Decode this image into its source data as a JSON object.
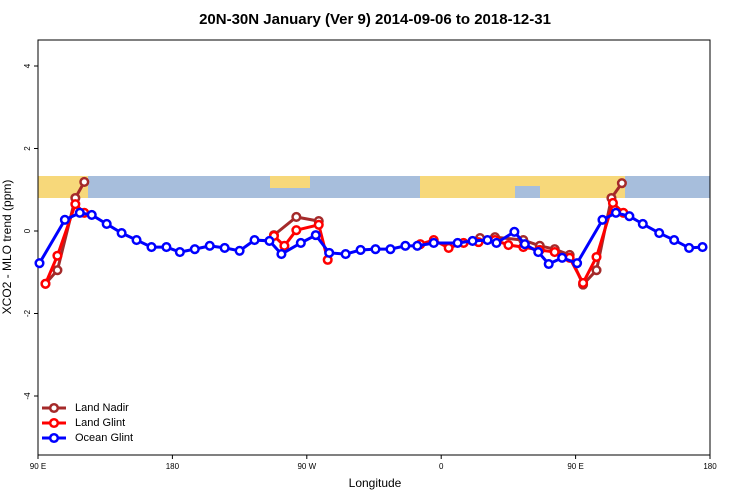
{
  "chart_data": {
    "type": "line",
    "title": "20N-30N January (Ver 9)   2014-09-06 to 2018-12-31",
    "x_label": "Longitude",
    "y_label": "XCO2 - MLO trend (ppm)",
    "xlim": [
      90,
      540
    ],
    "ylim": [
      -5.43,
      4.63
    ],
    "xticks": [
      {
        "value": 90,
        "label": "90 E"
      },
      180,
      {
        "value": 270,
        "label": "90 W"
      },
      {
        "value": 360,
        "label": "0"
      },
      {
        "value": 450,
        "label": "90 E"
      },
      {
        "value": 540,
        "label": "180"
      }
    ],
    "yticks": [
      -4,
      -2,
      0,
      2,
      4
    ],
    "legend": "bottom-left",
    "series": [
      {
        "name": "Land Nadir",
        "color": "#a52a2a",
        "x": [
          95,
          103,
          115,
          121,
          null,
          248,
          263,
          278,
          null,
          386,
          396,
          415,
          426,
          436,
          446,
          455,
          464,
          474,
          481
        ],
        "values": [
          -1.28,
          -0.95,
          0.8,
          1.19,
          null,
          -0.1,
          0.34,
          0.24,
          null,
          -0.17,
          -0.15,
          -0.22,
          -0.36,
          -0.44,
          -0.58,
          -1.3,
          -0.95,
          0.8,
          1.16
        ]
      },
      {
        "name": "Land Glint",
        "color": "#ff0000",
        "x": [
          95,
          103,
          115,
          121,
          null,
          248,
          255,
          263,
          278,
          284,
          null,
          346,
          355,
          365,
          375,
          385,
          396,
          405,
          415,
          426,
          436,
          446,
          455,
          464,
          475,
          482
        ],
        "values": [
          -1.28,
          -0.6,
          0.65,
          0.44,
          null,
          -0.12,
          -0.36,
          0.02,
          0.15,
          -0.7,
          null,
          -0.32,
          -0.22,
          -0.41,
          -0.29,
          -0.27,
          -0.22,
          -0.34,
          -0.39,
          -0.46,
          -0.51,
          -0.65,
          -1.26,
          -0.63,
          0.68,
          0.44
        ]
      },
      {
        "name": "Ocean Glint",
        "color": "#0000ff",
        "x": [
          91,
          108,
          118,
          126,
          136,
          146,
          156,
          166,
          176,
          185,
          195,
          205,
          215,
          225,
          235,
          245,
          253,
          266,
          276,
          285,
          296,
          306,
          316,
          326,
          336,
          344,
          355,
          371,
          381,
          391,
          397,
          409,
          416,
          425,
          432,
          441,
          451,
          468,
          477,
          486,
          495,
          506,
          516,
          526,
          535
        ],
        "values": [
          -0.78,
          0.27,
          0.44,
          0.39,
          0.17,
          -0.05,
          -0.22,
          -0.39,
          -0.39,
          -0.51,
          -0.44,
          -0.36,
          -0.41,
          -0.48,
          -0.22,
          -0.24,
          -0.56,
          -0.29,
          -0.1,
          -0.53,
          -0.56,
          -0.46,
          -0.44,
          -0.44,
          -0.36,
          -0.36,
          -0.29,
          -0.29,
          -0.24,
          -0.22,
          -0.29,
          -0.02,
          -0.32,
          -0.51,
          -0.8,
          -0.65,
          -0.78,
          0.27,
          0.44,
          0.36,
          0.17,
          -0.05,
          -0.22,
          -0.41,
          -0.39
        ]
      }
    ]
  }
}
